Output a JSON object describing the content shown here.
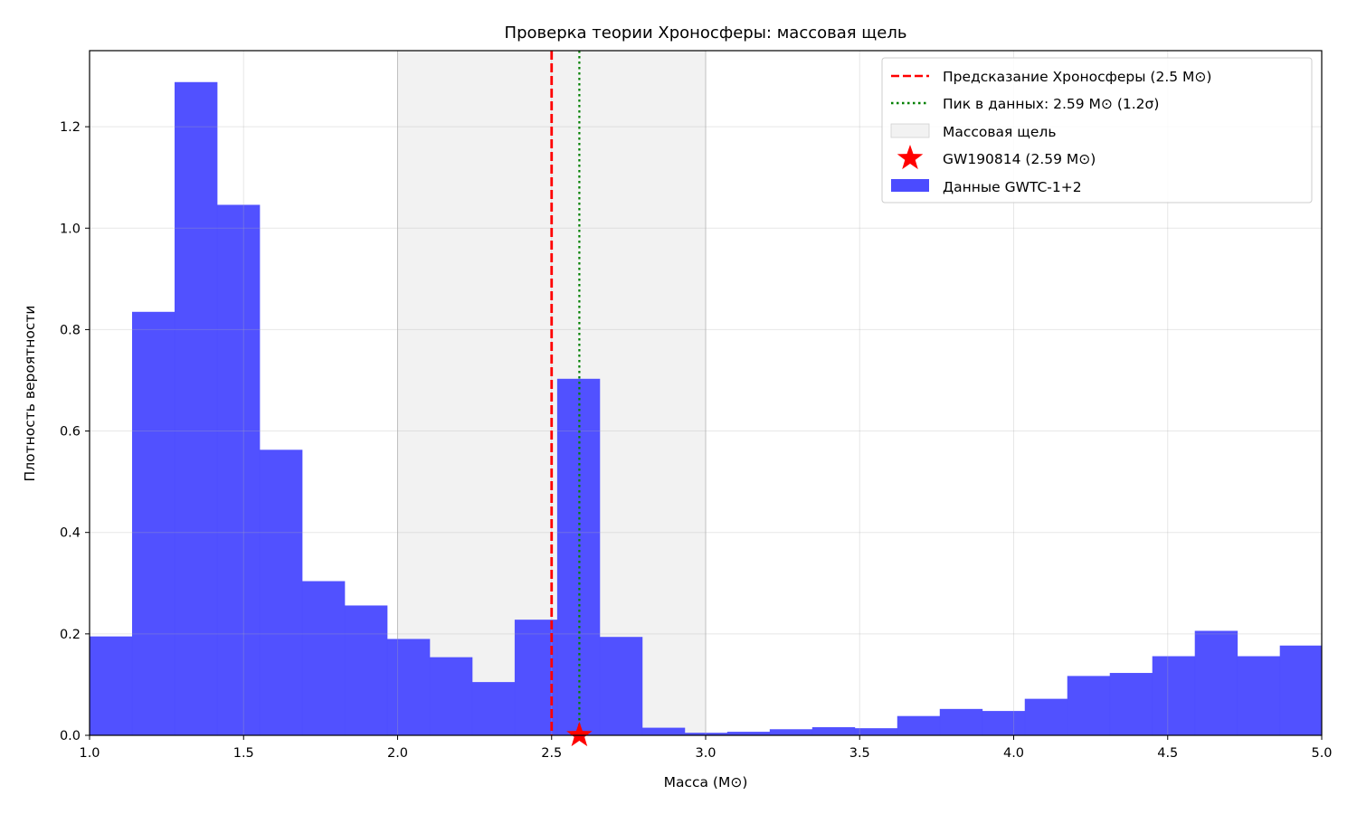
{
  "chart_data": {
    "type": "bar",
    "title": "Проверка теории Хроносферы: массовая щель",
    "xlabel": "Масса (M⊙)",
    "ylabel": "Плотность вероятности",
    "xlim": [
      1.0,
      5.0
    ],
    "ylim": [
      0.0,
      1.35
    ],
    "xticks": [
      "1.0",
      "1.5",
      "2.0",
      "2.5",
      "3.0",
      "3.5",
      "4.0",
      "4.5",
      "5.0"
    ],
    "yticks": [
      "0.0",
      "0.2",
      "0.4",
      "0.6",
      "0.8",
      "1.0",
      "1.2"
    ],
    "grid": true,
    "legend_position": "top-right",
    "histogram": {
      "name": "Данные GWTC-1+2",
      "color": "#4b4bff",
      "bin_start": 1.0,
      "bin_width": 0.138,
      "values": [
        0.195,
        0.835,
        1.288,
        1.046,
        0.563,
        0.304,
        0.256,
        0.19,
        0.154,
        0.105,
        0.228,
        0.703,
        0.194,
        0.015,
        0.005,
        0.007,
        0.012,
        0.016,
        0.014,
        0.038,
        0.052,
        0.048,
        0.072,
        0.117,
        0.123,
        0.156,
        0.206,
        0.156,
        0.177
      ]
    },
    "mass_gap": {
      "name": "Массовая щель",
      "range": [
        2.0,
        3.0
      ],
      "color": "#e8e8e8"
    },
    "prediction_line": {
      "name": "Предсказание Хроносферы (2.5 M⊙)",
      "x": 2.5,
      "color": "#ff0000",
      "style": "dashed"
    },
    "peak_line": {
      "name": "Пик в данных: 2.59 M⊙ (1.2σ)",
      "x": 2.59,
      "color": "#008000",
      "style": "dotted"
    },
    "marker": {
      "name": "GW190814 (2.59 M⊙)",
      "x": 2.59,
      "y": 0.0,
      "color": "#ff0000",
      "shape": "star"
    }
  }
}
